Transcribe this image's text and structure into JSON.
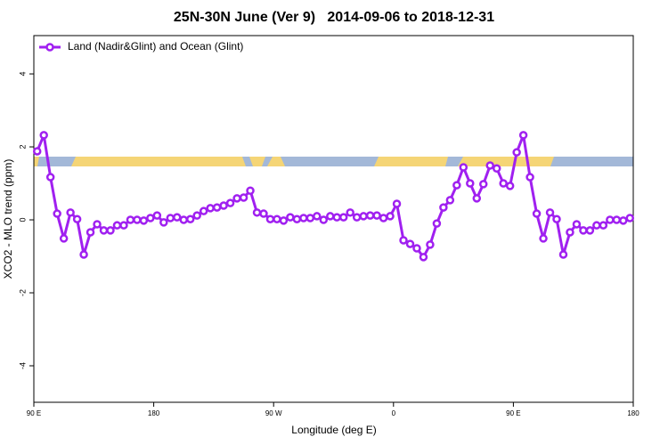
{
  "chart_data": {
    "type": "line",
    "title": "25N-30N June (Ver 9)   2014-09-06 to 2018-12-31",
    "x_label": "Longitude (deg E)",
    "y_label": "XCO2 - MLO trend (ppm)",
    "legend_position": "top-left",
    "xlim": [
      90,
      540
    ],
    "xticks": [
      {
        "value": 90,
        "label": "90 E"
      },
      {
        "value": 180,
        "label": "180"
      },
      {
        "value": 270,
        "label": "90 W"
      },
      {
        "value": 360,
        "label": "0"
      },
      {
        "value": 450,
        "label": "90 E"
      },
      {
        "value": 540,
        "label": "180"
      }
    ],
    "ylim": [
      -5,
      5.05
    ],
    "yticks": [
      -4,
      -2,
      0,
      2,
      4
    ],
    "x": [
      92.5,
      97.5,
      102.5,
      107.5,
      112.5,
      117.5,
      122.5,
      127.5,
      132.5,
      137.5,
      142.5,
      147.5,
      152.5,
      157.5,
      162.5,
      167.5,
      172.5,
      177.5,
      182.5,
      187.5,
      192.5,
      197.5,
      202.5,
      207.5,
      212.5,
      217.5,
      222.5,
      227.5,
      232.5,
      237.5,
      242.5,
      247.5,
      252.5,
      257.5,
      262.5,
      267.5,
      272.5,
      277.5,
      282.5,
      287.5,
      292.5,
      297.5,
      302.5,
      307.5,
      312.5,
      317.5,
      322.5,
      327.5,
      332.5,
      337.5,
      342.5,
      347.5,
      352.5,
      357.5,
      362.5,
      367.5,
      372.5,
      377.5,
      382.5,
      387.5,
      392.5,
      397.5,
      402.5,
      407.5,
      412.5,
      417.5,
      422.5,
      427.5,
      432.5,
      437.5,
      442.5,
      447.5,
      452.5,
      457.5,
      462.5,
      467.5,
      472.5,
      477.5,
      482.5,
      487.5,
      492.5,
      497.5,
      502.5,
      507.5,
      512.5,
      517.5,
      522.5,
      527.5,
      532.5,
      537.5
    ],
    "series": [
      {
        "name": "Land (Nadir&Glint) and Ocean (Glint)",
        "color": "#a020f0",
        "values": [
          1.88,
          2.32,
          1.17,
          0.17,
          -0.51,
          0.2,
          0.02,
          -0.95,
          -0.34,
          -0.12,
          -0.29,
          -0.29,
          -0.15,
          -0.15,
          0.0,
          0.0,
          -0.02,
          0.05,
          0.12,
          -0.07,
          0.05,
          0.07,
          0.0,
          0.02,
          0.12,
          0.24,
          0.32,
          0.34,
          0.39,
          0.46,
          0.59,
          0.61,
          0.8,
          0.2,
          0.17,
          0.02,
          0.02,
          -0.02,
          0.07,
          0.02,
          0.05,
          0.05,
          0.1,
          0.0,
          0.1,
          0.07,
          0.07,
          0.2,
          0.07,
          0.1,
          0.12,
          0.12,
          0.05,
          0.1,
          0.44,
          -0.56,
          -0.66,
          -0.78,
          -1.02,
          -0.68,
          -0.1,
          0.34,
          0.54,
          0.95,
          1.44,
          1.0,
          0.59,
          0.98,
          1.49,
          1.41,
          1.0,
          0.93,
          1.85,
          2.32,
          1.17,
          0.17,
          -0.51,
          0.2,
          0.02,
          -0.95,
          -0.34,
          -0.12,
          -0.29,
          -0.29,
          -0.15,
          -0.15,
          0.0,
          0.0,
          -0.02,
          0.05
        ]
      }
    ]
  }
}
